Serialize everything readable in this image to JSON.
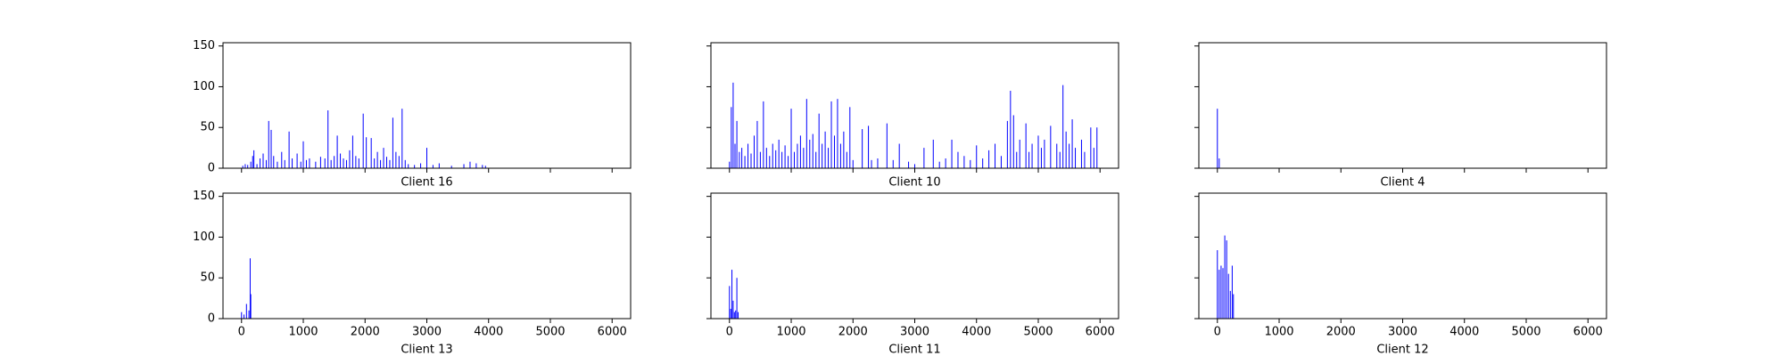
{
  "chart_data": [
    {
      "type": "bar",
      "xlabel": "Client 16",
      "color": "#0000ff",
      "xlim": [
        -300,
        6300
      ],
      "ylim": [
        0,
        154
      ],
      "xticks": [
        0,
        1000,
        2000,
        3000,
        4000,
        5000,
        6000
      ],
      "yticks": [
        0,
        50,
        100,
        150
      ],
      "show_xtick_labels": false,
      "show_ytick_labels": true,
      "x": [
        20,
        60,
        100,
        150,
        180,
        200,
        250,
        300,
        350,
        400,
        440,
        480,
        520,
        580,
        650,
        700,
        770,
        820,
        900,
        960,
        1000,
        1050,
        1100,
        1200,
        1280,
        1350,
        1400,
        1450,
        1500,
        1550,
        1600,
        1650,
        1700,
        1750,
        1800,
        1850,
        1900,
        1970,
        2020,
        2100,
        2150,
        2200,
        2250,
        2300,
        2350,
        2400,
        2450,
        2500,
        2550,
        2600,
        2650,
        2700,
        2800,
        2900,
        3000,
        3100,
        3200,
        3400,
        3600,
        3700,
        3800,
        3900,
        3950
      ],
      "values": [
        3,
        5,
        4,
        8,
        15,
        22,
        5,
        12,
        18,
        10,
        58,
        47,
        15,
        8,
        20,
        10,
        45,
        12,
        18,
        8,
        33,
        10,
        12,
        8,
        14,
        12,
        71,
        10,
        15,
        40,
        18,
        12,
        10,
        22,
        40,
        15,
        12,
        67,
        38,
        37,
        12,
        20,
        10,
        25,
        14,
        10,
        62,
        20,
        15,
        73,
        10,
        5,
        4,
        6,
        25,
        4,
        6,
        3,
        5,
        8,
        6,
        4,
        3
      ]
    },
    {
      "type": "bar",
      "xlabel": "Client 10",
      "color": "#0000ff",
      "xlim": [
        -300,
        6300
      ],
      "ylim": [
        0,
        154
      ],
      "xticks": [
        0,
        1000,
        2000,
        3000,
        4000,
        5000,
        6000
      ],
      "yticks": [
        0,
        50,
        100,
        150
      ],
      "show_xtick_labels": false,
      "show_ytick_labels": false,
      "x": [
        0,
        30,
        60,
        90,
        120,
        160,
        200,
        250,
        300,
        350,
        400,
        450,
        500,
        550,
        600,
        650,
        700,
        750,
        800,
        850,
        900,
        950,
        1000,
        1050,
        1100,
        1150,
        1200,
        1250,
        1300,
        1350,
        1400,
        1450,
        1500,
        1550,
        1600,
        1650,
        1700,
        1750,
        1800,
        1850,
        1900,
        1950,
        2000,
        2150,
        2250,
        2300,
        2400,
        2550,
        2650,
        2750,
        2900,
        3000,
        3150,
        3300,
        3400,
        3500,
        3600,
        3700,
        3800,
        3900,
        4000,
        4100,
        4200,
        4300,
        4400,
        4500,
        4550,
        4600,
        4650,
        4700,
        4800,
        4850,
        4900,
        5000,
        5050,
        5100,
        5200,
        5300,
        5350,
        5400,
        5450,
        5500,
        5550,
        5600,
        5700,
        5750,
        5850,
        5900,
        5950
      ],
      "values": [
        8,
        75,
        105,
        30,
        58,
        20,
        25,
        15,
        30,
        18,
        40,
        58,
        20,
        82,
        25,
        15,
        30,
        22,
        35,
        20,
        28,
        15,
        73,
        20,
        30,
        40,
        25,
        85,
        35,
        42,
        20,
        67,
        30,
        45,
        25,
        82,
        40,
        85,
        30,
        45,
        20,
        75,
        10,
        48,
        52,
        10,
        12,
        55,
        10,
        30,
        8,
        5,
        25,
        35,
        8,
        12,
        35,
        20,
        15,
        10,
        28,
        12,
        22,
        30,
        15,
        58,
        95,
        65,
        20,
        35,
        55,
        20,
        30,
        40,
        25,
        35,
        52,
        30,
        20,
        102,
        45,
        30,
        60,
        25,
        35,
        20,
        50,
        25,
        50
      ]
    },
    {
      "type": "bar",
      "xlabel": "Client 4",
      "color": "#0000ff",
      "xlim": [
        -300,
        6300
      ],
      "ylim": [
        0,
        154
      ],
      "xticks": [
        0,
        1000,
        2000,
        3000,
        4000,
        5000,
        6000
      ],
      "yticks": [
        0,
        50,
        100,
        150
      ],
      "show_xtick_labels": false,
      "show_ytick_labels": false,
      "x": [
        0,
        30
      ],
      "values": [
        73,
        12
      ]
    },
    {
      "type": "bar",
      "xlabel": "Client 13",
      "color": "#0000ff",
      "xlim": [
        -300,
        6300
      ],
      "ylim": [
        0,
        154
      ],
      "xticks": [
        0,
        1000,
        2000,
        3000,
        4000,
        5000,
        6000
      ],
      "yticks": [
        0,
        50,
        100,
        150
      ],
      "show_xtick_labels": true,
      "show_ytick_labels": true,
      "x": [
        0,
        40,
        80,
        120,
        140,
        150
      ],
      "values": [
        8,
        5,
        18,
        10,
        74,
        30
      ]
    },
    {
      "type": "bar",
      "xlabel": "Client 11",
      "color": "#0000ff",
      "xlim": [
        -300,
        6300
      ],
      "ylim": [
        0,
        154
      ],
      "xticks": [
        0,
        1000,
        2000,
        3000,
        4000,
        5000,
        6000
      ],
      "yticks": [
        0,
        50,
        100,
        150
      ],
      "show_xtick_labels": true,
      "show_ytick_labels": false,
      "x": [
        0,
        20,
        40,
        60,
        80,
        100,
        120,
        140
      ],
      "values": [
        40,
        12,
        60,
        22,
        8,
        10,
        50,
        8
      ]
    },
    {
      "type": "bar",
      "xlabel": "Client 12",
      "color": "#0000ff",
      "xlim": [
        -300,
        6300
      ],
      "ylim": [
        0,
        154
      ],
      "xticks": [
        0,
        1000,
        2000,
        3000,
        4000,
        5000,
        6000
      ],
      "yticks": [
        0,
        50,
        100,
        150
      ],
      "show_xtick_labels": true,
      "show_ytick_labels": false,
      "x": [
        0,
        30,
        60,
        90,
        120,
        150,
        180,
        210,
        240,
        260
      ],
      "values": [
        84,
        60,
        65,
        62,
        102,
        96,
        55,
        34,
        65,
        30
      ]
    }
  ]
}
